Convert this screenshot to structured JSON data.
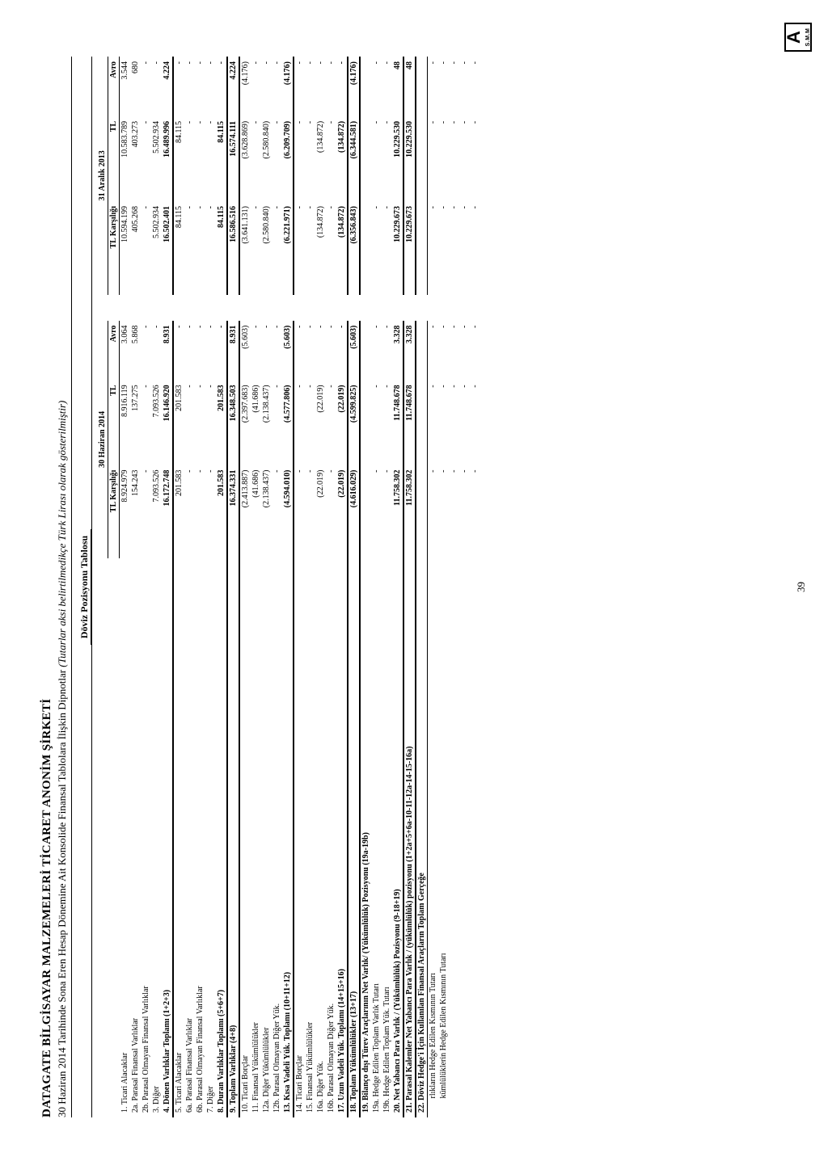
{
  "header": {
    "company": "DATAGATE BİLGİSAYAR MALZEMELERİ TİCARET ANONİM ŞİRKETİ",
    "subtitle_plain": "30 Haziran 2014 Tarihinde Sona Eren Hesap Dönemine Ait Konsolide Finansal Tablolara İlişkin Dipnotlar ",
    "subtitle_italic": "(Tutarlar aksi belirtilmedikçe Türk Lirası olarak gösterilmiştir)",
    "report_title": "Döviz Pozisyonu Tablosu"
  },
  "columns": {
    "group1": "30 Haziran 2014",
    "group2": "31 Aralık 2013",
    "c1": "TL Karşılığı",
    "c2": "TL",
    "c3": "Avro",
    "c4": "TL Karşılığı",
    "c5": "TL",
    "c6": "Avro"
  },
  "rows": [
    {
      "d": "1. Ticari Alacaklar",
      "v": [
        "8.924.979",
        "8.916.119",
        "3.064",
        "10.594.199",
        "10.583.789",
        "3.544"
      ]
    },
    {
      "d": "2a. Parasal Finansal Varlıklar",
      "v": [
        "154.243",
        "137.275",
        "5.868",
        "405.268",
        "403.273",
        "680"
      ]
    },
    {
      "d": "2b. Parasal Olmayan Finansal Varlıklar",
      "v": [
        "-",
        "-",
        "-",
        "-",
        "-",
        "-"
      ]
    },
    {
      "d": "3. Diğer",
      "v": [
        "7.093.526",
        "7.093.526",
        "-",
        "5.502.934",
        "5.502.934",
        "-"
      ]
    },
    {
      "d": "4. Dönen Varlıklar Toplamı (1+2+3)",
      "v": [
        "16.172.748",
        "16.146.920",
        "8.931",
        "16.502.401",
        "16.489.996",
        "4.224"
      ],
      "bold": true,
      "u": "heavy"
    },
    {
      "d": "5. Ticari Alacaklar",
      "v": [
        "201.583",
        "201.583",
        "-",
        "84.115",
        "84.115",
        "-"
      ]
    },
    {
      "d": "6a. Parasal Finansal Varlıklar",
      "v": [
        "-",
        "-",
        "-",
        "-",
        "-",
        "-"
      ]
    },
    {
      "d": "6b. Parasal Olmayan Finansal Varlıklar",
      "v": [
        "-",
        "-",
        "-",
        "-",
        "-",
        "-"
      ]
    },
    {
      "d": "7. Diğer",
      "v": [
        "-",
        "-",
        "-",
        "-",
        "-",
        "-"
      ]
    },
    {
      "d": "8. Duran Varlıklar Toplamı (5+6+7)",
      "v": [
        "201.583",
        "201.583",
        "-",
        "84.115",
        "84.115",
        "-"
      ],
      "bold": true,
      "u": "heavy"
    },
    {
      "d": "9. Toplam Varlıklar (4+8)",
      "v": [
        "16.374.331",
        "16.348.503",
        "8.931",
        "16.586.516",
        "16.574.111",
        "4.224"
      ],
      "bold": true,
      "u": "heavy"
    },
    {
      "d": "10. Ticari Borçlar",
      "v": [
        "(2.413.887)",
        "(2.397.683)",
        "(5.603)",
        "(3.641.131)",
        "(3.628.869)",
        "(4.176)"
      ]
    },
    {
      "d": "11. Finansal Yükümlülükler",
      "v": [
        "(41.686)",
        "(41.686)",
        "-",
        "-",
        "-",
        "-"
      ]
    },
    {
      "d": "12a. Diğer Yükümlülükler",
      "v": [
        "(2.138.437)",
        "(2.138.437)",
        "-",
        "(2.580.840)",
        "(2.580.840)",
        "-"
      ]
    },
    {
      "d": "12b. Parasal Olmayan Diğer Yük.",
      "v": [
        "-",
        "-",
        "-",
        "-",
        "-",
        "-"
      ]
    },
    {
      "d": "13. Kısa Vadeli Yük. Toplamı (10+11+12)",
      "v": [
        "(4.594.010)",
        "(4.577.806)",
        "(5.603)",
        "(6.221.971)",
        "(6.209.709)",
        "(4.176)"
      ],
      "bold": true,
      "u": "heavy"
    },
    {
      "d": "14. Ticari Borçlar",
      "v": [
        "-",
        "-",
        "-",
        "-",
        "-",
        "-"
      ]
    },
    {
      "d": "15. Finansal Yükümlülükler",
      "v": [
        "-",
        "-",
        "-",
        "-",
        "-",
        "-"
      ]
    },
    {
      "d": "16a. Diğer Yük.",
      "v": [
        "(22.019)",
        "(22.019)",
        "-",
        "(134.872)",
        "(134.872)",
        "-"
      ]
    },
    {
      "d": "16b. Parasal Olmayan Diğer Yük.",
      "v": [
        "-",
        "-",
        "-",
        "-",
        "-",
        "-"
      ]
    },
    {
      "d": "17. Uzun Vadeli Yük. Toplamı (14+15+16)",
      "v": [
        "(22.019)",
        "(22.019)",
        "-",
        "(134.872)",
        "(134.872)",
        "-"
      ],
      "bold": true,
      "u": "heavy"
    },
    {
      "d": "18. Toplam Yükümlülükler (13+17)",
      "v": [
        "(4.616.029)",
        "(4.599.825)",
        "(5.603)",
        "(6.356.843)",
        "(6.344.581)",
        "(4.176)"
      ],
      "bold": true,
      "u": "heavy"
    },
    {
      "d": "19. Bilanço dışı Türev Araçlarının Net Varlık/ (Yükümlülük) Pozisyonu (19a-19b)",
      "v": [
        "",
        "",
        "",
        "",
        "",
        ""
      ],
      "bold": true,
      "wrap": true
    },
    {
      "d": "19a. Hedge Edilen Toplam Varlık Tutarı",
      "v": [
        "-",
        "-",
        "-",
        "-",
        "-",
        "-"
      ]
    },
    {
      "d": "19b. Hedge Edilen Toplam Yük. Tutarı",
      "v": [
        "-",
        "-",
        "-",
        "-",
        "-",
        "-"
      ]
    },
    {
      "d": "20. Net Yabancı Para Varlık / (Yükümlülük) Pozisyonu (9-18+19)",
      "v": [
        "11.758.302",
        "11.748.678",
        "3.328",
        "10.229.673",
        "10.229.530",
        "48"
      ],
      "bold": true,
      "u": "heavy"
    },
    {
      "d": "21. Parasal Kalemler Net Yabancı Para Varlık / (yükümlülük) pozisyonu (1+2a+5+6a-10-11-12a-14-15-16a)",
      "v": [
        "11.758.302",
        "11.748.678",
        "3.328",
        "10.229.673",
        "10.229.530",
        "48"
      ],
      "bold": true,
      "u": "heavy",
      "wrap": true
    },
    {
      "d": "22. Döviz Hedge'i İçin Kullanılan Finansal Araçların Toplam Gerçeğe",
      "v": [
        "",
        "",
        "",
        "",
        "",
        ""
      ],
      "bold": true,
      "wrap": true,
      "u": "thin"
    },
    {
      "d": "       rlıkların Hedge Edilen Kısmının Tutarı",
      "v": [
        "-",
        "-",
        "-",
        "-",
        "-",
        "-"
      ]
    },
    {
      "d": "       kümlülüklerin Hedge Edilen Kısmının Tutarı",
      "v": [
        "-",
        "-",
        "-",
        "-",
        "-",
        "-"
      ]
    },
    {
      "d": "",
      "v": [
        "-",
        "-",
        "-",
        "-",
        "-",
        "-"
      ]
    },
    {
      "d": "",
      "v": [
        "-",
        "-",
        "-",
        "-",
        "-",
        "-"
      ]
    },
    {
      "d": "",
      "v": [
        "-",
        "-",
        "-",
        "-",
        "-",
        "-"
      ]
    }
  ],
  "page_number": "39",
  "logo": {
    "big": "A",
    "small": "S.M.M"
  }
}
